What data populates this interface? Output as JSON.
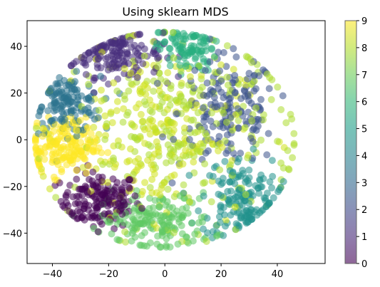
{
  "chart_data": {
    "type": "scatter",
    "title": "Using sklearn MDS",
    "xlabel": "",
    "ylabel": "",
    "xlim": [
      -49,
      57
    ],
    "ylim": [
      -53,
      51
    ],
    "xticks": [
      -40,
      -20,
      0,
      20,
      40
    ],
    "yticks": [
      -40,
      -20,
      0,
      20,
      40
    ],
    "grid": false,
    "colormap": "viridis",
    "point_alpha": 0.55,
    "colorbar": {
      "range": [
        0,
        9
      ],
      "ticks": [
        0,
        1,
        2,
        3,
        4,
        5,
        6,
        7,
        8,
        9
      ],
      "placement": "right"
    },
    "clusters": [
      {
        "label": 0,
        "center": [
          -23,
          -26
        ],
        "spread": [
          7,
          6
        ],
        "count": 170,
        "color": "#440154"
      },
      {
        "label": 1,
        "center": [
          -17,
          37
        ],
        "spread": [
          8,
          5
        ],
        "count": 150,
        "color": "#472d7b"
      },
      {
        "label": 2,
        "center": [
          23,
          12
        ],
        "spread": [
          9,
          12
        ],
        "count": 160,
        "color": "#3b528b"
      },
      {
        "label": 3,
        "center": [
          -35,
          15
        ],
        "spread": [
          6,
          6
        ],
        "count": 140,
        "color": "#2c728e"
      },
      {
        "label": 4,
        "center": [
          27,
          -25
        ],
        "spread": [
          7,
          9
        ],
        "count": 160,
        "color": "#21918c"
      },
      {
        "label": 5,
        "center": [
          8,
          39
        ],
        "spread": [
          5,
          5
        ],
        "count": 100,
        "color": "#28ae80"
      },
      {
        "label": 6,
        "center": [
          -3,
          -35
        ],
        "spread": [
          10,
          6
        ],
        "count": 170,
        "color": "#5ec962"
      },
      {
        "label": 7,
        "center": [
          8,
          4
        ],
        "spread": [
          20,
          20
        ],
        "count": 270,
        "color": "#addc30"
      },
      {
        "label": 8,
        "center": [
          -5,
          4
        ],
        "spread": [
          16,
          18
        ],
        "count": 200,
        "color": "#d0e11c"
      },
      {
        "label": 9,
        "center": [
          -36,
          -3
        ],
        "spread": [
          6,
          6
        ],
        "count": 170,
        "color": "#fde725"
      }
    ]
  }
}
